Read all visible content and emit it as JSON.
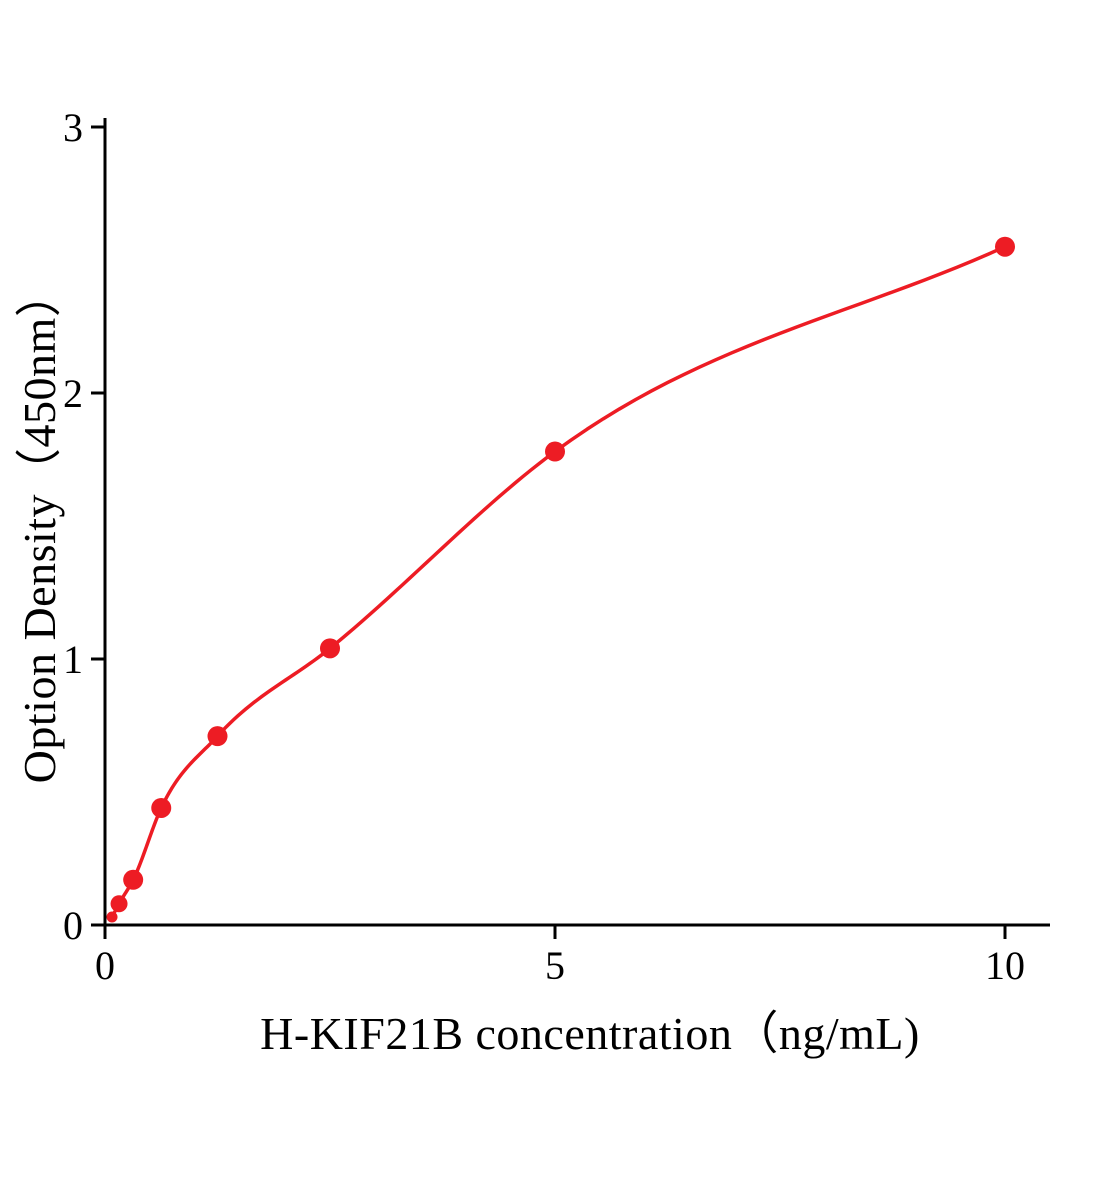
{
  "chart_data": {
    "type": "scatter",
    "title": "",
    "xlabel": "H-KIF21B concentration（ng/mL)",
    "ylabel": "Option Density（450nm）",
    "x": [
      0.078,
      0.156,
      0.313,
      0.625,
      1.25,
      2.5,
      5,
      10
    ],
    "y": [
      0.03,
      0.08,
      0.17,
      0.44,
      0.71,
      1.04,
      1.78,
      2.55
    ],
    "xlim": [
      0,
      10.5
    ],
    "ylim": [
      0,
      3
    ],
    "xticks": [
      0,
      5,
      10
    ],
    "yticks": [
      0,
      1,
      2,
      3
    ],
    "curve": "smooth-fit-line",
    "grid": false,
    "legend": null,
    "colors": {
      "point": "#ed1c24",
      "line": "#ed1c24",
      "axis": "#000000",
      "tick_label": "#000000",
      "background": "#ffffff"
    }
  }
}
